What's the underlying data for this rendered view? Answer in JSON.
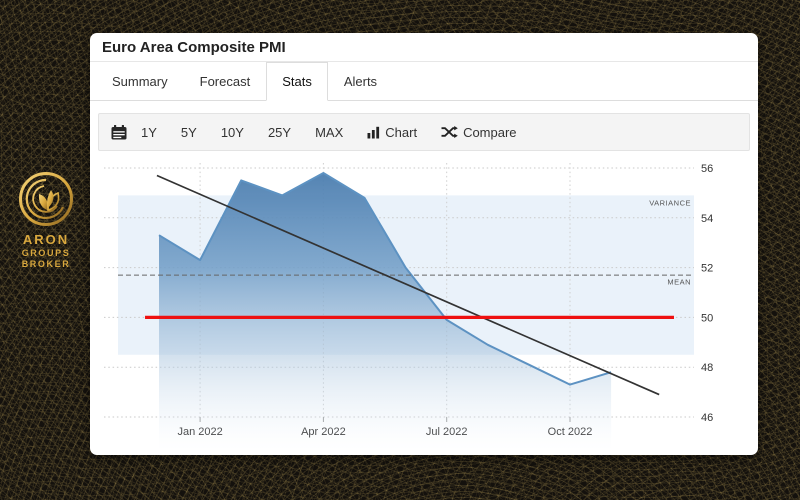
{
  "logo": {
    "line1": "ARON",
    "line2": "GROUPS",
    "line3": "BROKER",
    "gold_color": "#d9a83e"
  },
  "widget": {
    "title": "Euro Area Composite PMI",
    "tabs": [
      {
        "label": "Summary",
        "active": false
      },
      {
        "label": "Forecast",
        "active": false
      },
      {
        "label": "Stats",
        "active": true
      },
      {
        "label": "Alerts",
        "active": false
      }
    ],
    "toolbar": {
      "calendar_icon": "calendar-icon",
      "ranges": [
        "1Y",
        "5Y",
        "10Y",
        "25Y",
        "MAX"
      ],
      "chart_label": "Chart",
      "compare_label": "Compare"
    }
  },
  "chart_data": {
    "type": "area",
    "title": "Euro Area Composite PMI",
    "x": [
      "Dec 2021",
      "Jan 2022",
      "Feb 2022",
      "Mar 2022",
      "Apr 2022",
      "May 2022",
      "Jun 2022",
      "Jul 2022",
      "Aug 2022",
      "Sep 2022",
      "Oct 2022",
      "Nov 2022"
    ],
    "values": [
      53.3,
      52.3,
      55.5,
      54.9,
      55.8,
      54.8,
      52.0,
      49.9,
      48.9,
      48.1,
      47.3,
      47.8
    ],
    "x_tick_labels": [
      {
        "index": 1,
        "label": "Jan 2022"
      },
      {
        "index": 4,
        "label": "Apr 2022"
      },
      {
        "index": 7,
        "label": "Jul 2022"
      },
      {
        "index": 10,
        "label": "Oct 2022"
      }
    ],
    "y_ticks": [
      56,
      54,
      52,
      50,
      48,
      46
    ],
    "ylim": [
      45.5,
      56.2
    ],
    "grid": true,
    "legend": "none",
    "series_color": "#4d82b4",
    "mean_line": {
      "label": "MEAN",
      "value": 51.7,
      "style": "dashed"
    },
    "variance_band": {
      "label": "VARIANCE",
      "low": 48.5,
      "high": 54.9,
      "color": "#eaf2fa"
    },
    "reference_line": {
      "value": 50.0,
      "color": "#ee1010",
      "x_span_months": [
        -0.34,
        12.53
      ]
    },
    "trend_line": {
      "start_value": 55.7,
      "end_value": 46.9,
      "color": "#333333",
      "x_span_months": [
        -0.05,
        12.17
      ]
    }
  }
}
